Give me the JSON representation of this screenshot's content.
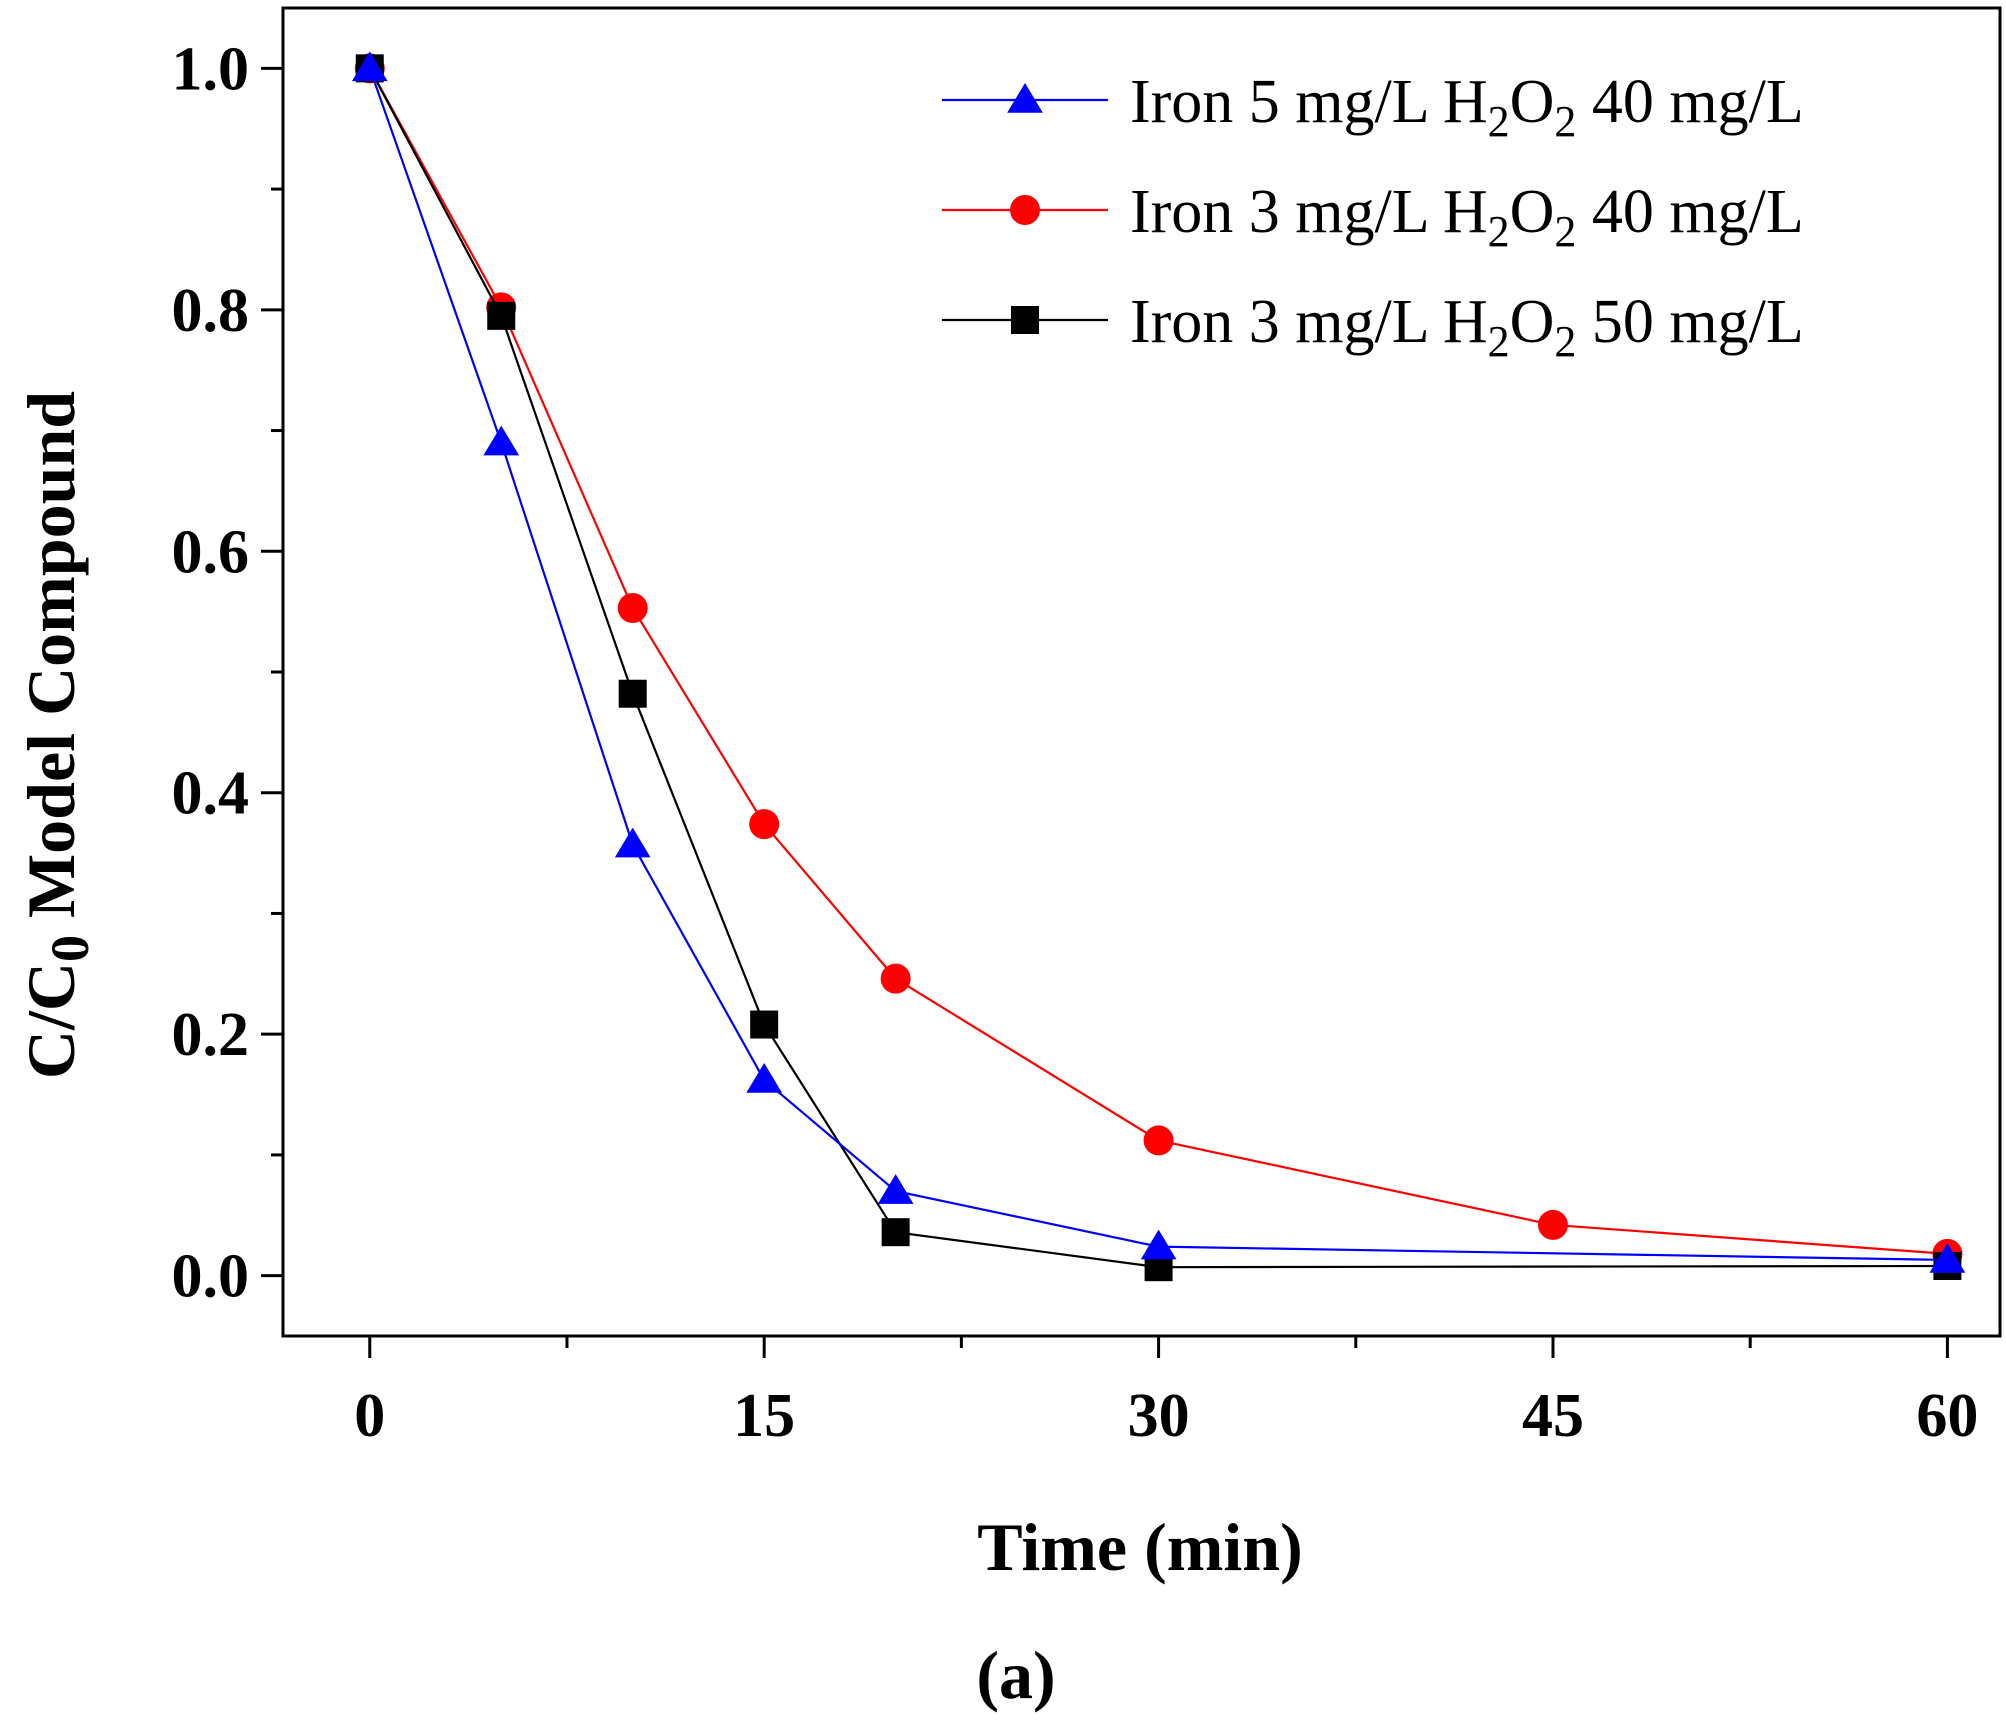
{
  "chart_data": {
    "type": "line",
    "subtitle": "(a)",
    "xlabel": "Time (min)",
    "ylabel": {
      "main": "C/C",
      "subscript": "0",
      "rest": " Model Compound"
    },
    "xlim": [
      -3.3,
      62
    ],
    "ylim": [
      -0.05,
      1.05
    ],
    "x_ticks": [
      0,
      15,
      30,
      45,
      60
    ],
    "x_tick_labels": [
      "0",
      "15",
      "30",
      "45",
      "60"
    ],
    "x_minor_ticks": [
      7.5,
      22.5,
      37.5,
      52.5
    ],
    "y_ticks": [
      0.0,
      0.2,
      0.4,
      0.6,
      0.8,
      1.0
    ],
    "y_tick_labels": [
      "0.0",
      "0.2",
      "0.4",
      "0.6",
      "0.8",
      "1.0"
    ],
    "y_minor_ticks": [
      0.1,
      0.3,
      0.5,
      0.7,
      0.9
    ],
    "grid": false,
    "legend_position": "top-right",
    "series": [
      {
        "name": "Iron 5 mg/L H2O2 40 mg/L",
        "legend": {
          "prefix": "Iron 5 mg/L H",
          "sub1": "2",
          "mid": "O",
          "sub2": "2",
          "suffix": " 40 mg/L"
        },
        "color": "#0000ff",
        "marker": "triangle",
        "x": [
          0,
          5,
          10,
          15,
          20,
          30,
          60
        ],
        "y": [
          1.0,
          0.69,
          0.357,
          0.162,
          0.07,
          0.024,
          0.013
        ]
      },
      {
        "name": "Iron 3 mg/L H2O2 40 mg/L",
        "legend": {
          "prefix": "Iron 3 mg/L H",
          "sub1": "2",
          "mid": "O",
          "sub2": "2",
          "suffix": " 40 mg/L"
        },
        "color": "#ff0000",
        "marker": "circle",
        "x": [
          0,
          5,
          10,
          15,
          20,
          30,
          45,
          60
        ],
        "y": [
          1.0,
          0.802,
          0.553,
          0.374,
          0.246,
          0.112,
          0.042,
          0.018
        ]
      },
      {
        "name": "Iron 3 mg/L H2O2 50 mg/L",
        "legend": {
          "prefix": "Iron 3 mg/L H",
          "sub1": "2",
          "mid": "O",
          "sub2": "2",
          "suffix": " 50 mg/L"
        },
        "color": "#000000",
        "marker": "square",
        "x": [
          0,
          5,
          10,
          15,
          20,
          30,
          60
        ],
        "y": [
          1.0,
          0.795,
          0.482,
          0.208,
          0.036,
          0.007,
          0.008
        ]
      }
    ]
  }
}
